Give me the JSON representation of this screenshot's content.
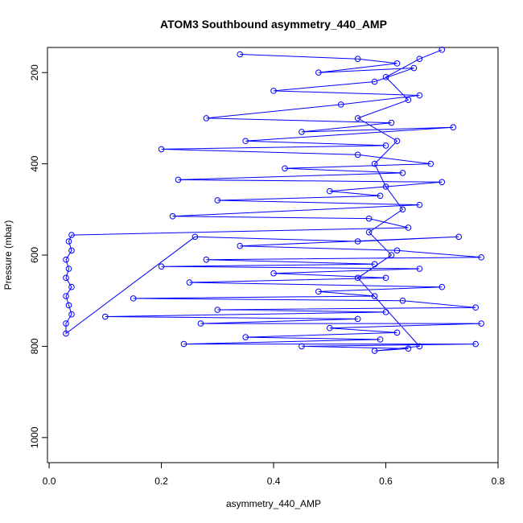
{
  "chart_data": {
    "type": "scatter",
    "title": "ATOM3 Southbound asymmetry_440_AMP",
    "x_label": "asymmetry_440_AMP",
    "y_label": "Pressure (mbar)",
    "color": "#0000ff",
    "connect": true,
    "xlim": [
      -0.003,
      0.8
    ],
    "ylim": [
      1055,
      145
    ],
    "xticks": [
      {
        "value": 0,
        "label": "0.0"
      },
      0.2,
      0.4,
      0.6,
      0.8
    ],
    "yticks": [
      200,
      400,
      600,
      800,
      1000
    ],
    "x": [
      0.34,
      0.55,
      0.62,
      0.48,
      0.65,
      0.58,
      0.4,
      0.66,
      0.52,
      0.28,
      0.61,
      0.45,
      0.72,
      0.35,
      0.6,
      0.2,
      0.55,
      0.68,
      0.42,
      0.63,
      0.23,
      0.7,
      0.5,
      0.59,
      0.3,
      0.66,
      0.22,
      0.57,
      0.64,
      0.04,
      0.035,
      0.04,
      0.03,
      0.035,
      0.03,
      0.04,
      0.03,
      0.035,
      0.04,
      0.03,
      0.03,
      0.26,
      0.55,
      0.73,
      0.34,
      0.62,
      0.77,
      0.28,
      0.58,
      0.2,
      0.66,
      0.4,
      0.6,
      0.25,
      0.7,
      0.48,
      0.58,
      0.15,
      0.63,
      0.76,
      0.3,
      0.6,
      0.1,
      0.55,
      0.27,
      0.77,
      0.5,
      0.62,
      0.35,
      0.59,
      0.24,
      0.76,
      0.45,
      0.64,
      0.58,
      0.66,
      0.55,
      0.61,
      0.57,
      0.63,
      0.6,
      0.58,
      0.62,
      0.55,
      0.64,
      0.6,
      0.66,
      0.7
    ],
    "values": [
      160,
      170,
      180,
      200,
      190,
      220,
      240,
      250,
      270,
      300,
      310,
      330,
      320,
      350,
      360,
      368,
      380,
      400,
      410,
      420,
      435,
      440,
      460,
      470,
      480,
      490,
      515,
      520,
      540,
      556,
      570,
      590,
      610,
      630,
      650,
      670,
      690,
      710,
      730,
      750,
      772,
      560,
      570,
      560,
      580,
      590,
      605,
      610,
      620,
      625,
      630,
      640,
      650,
      660,
      670,
      680,
      690,
      695,
      700,
      715,
      720,
      725,
      735,
      740,
      750,
      750,
      760,
      770,
      780,
      785,
      795,
      795,
      800,
      805,
      810,
      800,
      650,
      600,
      550,
      500,
      450,
      400,
      350,
      300,
      260,
      210,
      170,
      150
    ]
  }
}
